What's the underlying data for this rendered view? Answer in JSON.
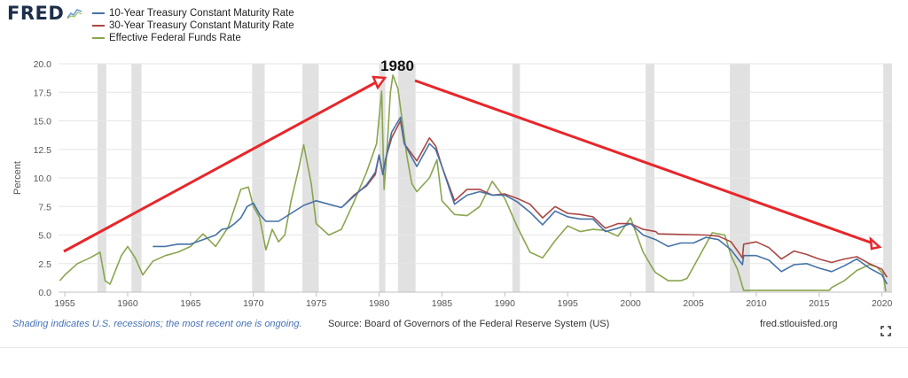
{
  "header": {
    "logo_text": "FRED",
    "logo_icon": "fred-sparkline-icon"
  },
  "legend": [
    {
      "label": "10-Year Treasury Constant Maturity Rate",
      "color": "#4572a7"
    },
    {
      "label": "30-Year Treasury Constant Maturity Rate",
      "color": "#aa4643"
    },
    {
      "label": "Effective Federal Funds Rate",
      "color": "#89a54e"
    }
  ],
  "annotation": {
    "label": "1980",
    "arrow_color": "#e8262a"
  },
  "footer": {
    "note": "Shading indicates U.S. recessions; the most recent one is ongoing.",
    "source": "Source: Board of Governors of the Federal Reserve System (US)",
    "site": "fred.stlouisfed.org",
    "fullscreen_icon": "fullscreen-icon"
  },
  "chart_data": {
    "type": "line",
    "title": "",
    "xlabel": "",
    "ylabel": "Percent",
    "xlim": [
      1954.5,
      2020.8
    ],
    "ylim": [
      0,
      20
    ],
    "y_ticks": [
      0,
      2.5,
      5,
      7.5,
      10,
      12.5,
      15,
      17.5,
      20
    ],
    "y_tick_labels": [
      "0.0",
      "2.5",
      "5.0",
      "7.5",
      "10.0",
      "12.5",
      "15.0",
      "17.5",
      "20.0"
    ],
    "x_ticks": [
      1955,
      1960,
      1965,
      1970,
      1975,
      1980,
      1985,
      1990,
      1995,
      2000,
      2005,
      2010,
      2015,
      2020
    ],
    "grid": "horizontal",
    "legend_position": "top-left",
    "recessions": [
      [
        1957.6,
        1958.3
      ],
      [
        1960.3,
        1961.1
      ],
      [
        1969.9,
        1970.9
      ],
      [
        1973.9,
        1975.2
      ],
      [
        1980.0,
        1980.5
      ],
      [
        1981.5,
        1982.9
      ],
      [
        1990.6,
        1991.2
      ],
      [
        2001.2,
        2001.9
      ],
      [
        2007.9,
        2009.5
      ],
      [
        2020.1,
        2020.8
      ]
    ],
    "series": [
      {
        "name": "10-Year Treasury Constant Maturity Rate",
        "color": "#4572a7",
        "x": [
          1962.0,
          1963,
          1964,
          1965,
          1966,
          1967,
          1967.5,
          1968,
          1968.5,
          1969,
          1969.5,
          1970,
          1970.5,
          1971,
          1972,
          1973,
          1974,
          1975,
          1976,
          1977,
          1978,
          1979,
          1979.7,
          1980,
          1980.3,
          1980.5,
          1981,
          1981.7,
          1982,
          1983,
          1984,
          1984.5,
          1985,
          1986,
          1987,
          1988,
          1989,
          1990,
          1991,
          1992,
          1993,
          1994,
          1995,
          1996,
          1997,
          1998,
          1999,
          2000,
          2001,
          2002,
          2003,
          2004,
          2005,
          2006,
          2007,
          2008,
          2008.9,
          2009,
          2010,
          2011,
          2012,
          2013,
          2014,
          2015,
          2016,
          2017,
          2018,
          2019,
          2020.0,
          2020.4
        ],
        "y": [
          4.0,
          4.0,
          4.2,
          4.2,
          4.6,
          5.0,
          5.5,
          5.6,
          6.0,
          6.5,
          7.5,
          7.8,
          6.8,
          6.2,
          6.2,
          6.9,
          7.6,
          8.0,
          7.7,
          7.4,
          8.4,
          9.4,
          10.5,
          12.0,
          10.3,
          11.5,
          14.0,
          15.3,
          13.0,
          11.0,
          13.0,
          12.5,
          11.0,
          7.7,
          8.5,
          8.8,
          8.5,
          8.5,
          7.9,
          7.0,
          5.9,
          7.1,
          6.6,
          6.4,
          6.4,
          5.3,
          5.6,
          6.0,
          5.0,
          4.6,
          4.0,
          4.3,
          4.3,
          4.8,
          4.6,
          3.7,
          2.4,
          3.2,
          3.2,
          2.8,
          1.8,
          2.4,
          2.5,
          2.1,
          1.8,
          2.3,
          2.9,
          2.1,
          1.5,
          0.7
        ]
      },
      {
        "name": "30-Year Treasury Constant Maturity Rate",
        "color": "#aa4643",
        "x": [
          1977.2,
          1978,
          1979,
          1979.7,
          1980,
          1980.3,
          1980.5,
          1981,
          1981.7,
          1982,
          1983,
          1984,
          1984.5,
          1985,
          1986,
          1987,
          1988,
          1989,
          1990,
          1991,
          1992,
          1993,
          1994,
          1995,
          1996,
          1997,
          1998,
          1999,
          2000,
          2001,
          2002,
          2002.2,
          2006.0,
          2007,
          2008,
          2008.9,
          2009,
          2010,
          2011,
          2012,
          2013,
          2014,
          2015,
          2016,
          2017,
          2018,
          2019,
          2020.0,
          2020.4
        ],
        "y": [
          7.6,
          8.5,
          9.3,
          10.3,
          12.0,
          10.3,
          11.6,
          13.5,
          15.0,
          13.0,
          11.5,
          13.5,
          12.8,
          11.0,
          8.0,
          9.0,
          9.0,
          8.5,
          8.6,
          8.2,
          7.7,
          6.5,
          7.5,
          6.9,
          6.8,
          6.6,
          5.6,
          6.0,
          6.0,
          5.5,
          5.3,
          5.1,
          5.0,
          4.9,
          4.4,
          3.0,
          4.2,
          4.4,
          3.9,
          2.9,
          3.6,
          3.3,
          2.9,
          2.6,
          2.9,
          3.1,
          2.5,
          2.0,
          1.3
        ]
      },
      {
        "name": "Effective Federal Funds Rate",
        "color": "#89a54e",
        "x": [
          1954.6,
          1955,
          1956,
          1957,
          1957.8,
          1958.2,
          1958.6,
          1959.5,
          1960.0,
          1960.6,
          1961.2,
          1962,
          1963,
          1964,
          1965,
          1966,
          1967,
          1968,
          1969,
          1969.6,
          1970,
          1970.5,
          1971,
          1971.5,
          1972,
          1972.5,
          1973.0,
          1973.6,
          1974.0,
          1974.6,
          1975.0,
          1976,
          1977,
          1978,
          1979,
          1979.8,
          1980.2,
          1980.4,
          1980.6,
          1980.9,
          1981.1,
          1981.5,
          1981.9,
          1982.2,
          1982.6,
          1983,
          1984,
          1984.6,
          1985,
          1986,
          1987,
          1988,
          1989,
          1990,
          1991,
          1992,
          1993,
          1994,
          1995,
          1996,
          1997,
          1998,
          1999,
          2000,
          2001,
          2001.8,
          2002,
          2003,
          2004,
          2004.5,
          2006.5,
          2007.5,
          2008.0,
          2008.5,
          2009,
          2015.8,
          2016,
          2017,
          2018,
          2019,
          2019.6,
          2020.1,
          2020.3
        ],
        "y": [
          1.0,
          1.5,
          2.5,
          3.0,
          3.5,
          1.0,
          0.7,
          3.2,
          4.0,
          3.0,
          1.5,
          2.7,
          3.2,
          3.5,
          4.0,
          5.1,
          4.0,
          5.7,
          9.0,
          9.2,
          7.5,
          6.5,
          3.7,
          5.5,
          4.4,
          5.0,
          8.0,
          10.8,
          12.9,
          9.5,
          6.0,
          5.0,
          5.5,
          7.9,
          10.5,
          13.0,
          17.6,
          9.0,
          12.0,
          17.5,
          19.0,
          17.8,
          14.5,
          12.0,
          9.5,
          8.8,
          10.0,
          11.6,
          8.0,
          6.8,
          6.7,
          7.5,
          9.7,
          8.2,
          5.7,
          3.5,
          3.0,
          4.5,
          5.8,
          5.3,
          5.5,
          5.4,
          4.9,
          6.5,
          3.5,
          2.0,
          1.7,
          1.0,
          1.0,
          1.2,
          5.2,
          5.0,
          3.2,
          2.0,
          0.15,
          0.15,
          0.4,
          1.0,
          1.9,
          2.4,
          2.2,
          1.6,
          0.08
        ]
      }
    ]
  }
}
